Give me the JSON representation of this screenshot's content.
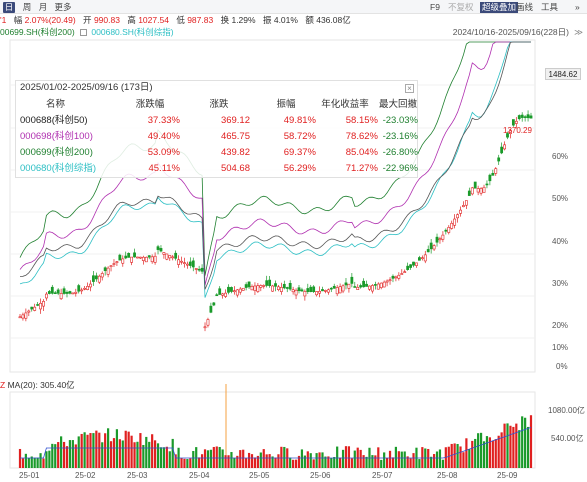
{
  "toolbar": {
    "periods": [
      "日",
      "周",
      "月",
      "更多"
    ],
    "right_items": [
      "F9",
      "不复权",
      "超级叠加",
      "画线",
      "工具",
      "»"
    ],
    "active_right": "超级叠加"
  },
  "quote": {
    "prefix": "'1",
    "change_label": "幅",
    "change": "2.07%(20.49)",
    "open_label": "开",
    "open": "990.83",
    "high_label": "高",
    "high": "1027.54",
    "low_label": "低",
    "low": "987.83",
    "turnover_label": "换",
    "turnover": "1.29%",
    "amplitude_label": "振",
    "amplitude": "4.01%",
    "amount_label": "额",
    "amount": "436.08亿"
  },
  "overlay_series": [
    {
      "label": "00699.SH(科创200)",
      "color": "#208030"
    },
    {
      "label": "000680.SH(科创综指)",
      "color": "#2cbfc4"
    }
  ],
  "range_label": "2024/10/16-2025/09/16(228日)",
  "panel": {
    "title": "2025/01/02-2025/09/16 (173日)",
    "close": "×",
    "headers": [
      "名称",
      "涨跌幅",
      "涨跌",
      "振幅",
      "年化收益率",
      "最大回撤"
    ],
    "rows": [
      {
        "name": "000688(科创50)",
        "color": "#222222",
        "change_pct": "37.33%",
        "change": "369.12",
        "amplitude": "49.81%",
        "annual": "58.15%",
        "drawdown": "-23.03%"
      },
      {
        "name": "000698(科创100)",
        "color": "#b030b0",
        "change_pct": "49.40%",
        "change": "465.75",
        "amplitude": "58.72%",
        "annual": "78.62%",
        "drawdown": "-23.16%"
      },
      {
        "name": "000699(科创200)",
        "color": "#208030",
        "change_pct": "53.09%",
        "change": "439.82",
        "amplitude": "69.37%",
        "annual": "85.04%",
        "drawdown": "-26.80%"
      },
      {
        "name": "000680(科创综指)",
        "color": "#2cbfc4",
        "change_pct": "45.11%",
        "change": "504.68",
        "amplitude": "56.29%",
        "annual": "71.27%",
        "drawdown": "-22.96%"
      }
    ]
  },
  "price_axis": {
    "labels": [
      "60%",
      "50%",
      "40%",
      "30%",
      "20%",
      "10%",
      "0%"
    ],
    "current_value": "1484.62",
    "annotation": "1370.29"
  },
  "volume": {
    "indicator": "MA(20): 305.40亿",
    "axis_labels": [
      "1080.00亿",
      "540.00亿"
    ]
  },
  "date_labels": [
    "25-01",
    "25-02",
    "25-03",
    "25-04",
    "25-05",
    "25-06",
    "25-07",
    "25-08",
    "25-09"
  ],
  "colors": {
    "up": "#e02020",
    "down": "#1a9a2a",
    "selected": "#3b4a7a",
    "marker": "#f5a040",
    "ma": "#3050d0"
  }
}
